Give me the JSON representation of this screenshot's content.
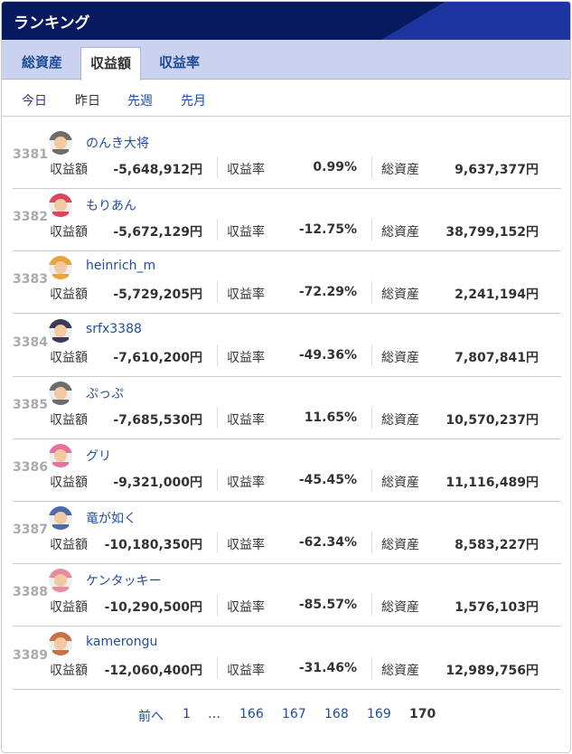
{
  "header": {
    "title": "ランキング"
  },
  "tabs": [
    {
      "label": "総資産"
    },
    {
      "label": "収益額",
      "active": true
    },
    {
      "label": "収益率"
    }
  ],
  "filters": [
    {
      "label": "今日"
    },
    {
      "label": "昨日",
      "active": true
    },
    {
      "label": "先週"
    },
    {
      "label": "先月"
    }
  ],
  "labels": {
    "profit": "収益額",
    "rate": "収益率",
    "assets": "総資産"
  },
  "rows": [
    {
      "rank": "3381",
      "name": "のんき大将",
      "profit": "-5,648,912円",
      "rate": "0.99%",
      "assets": "9,637,377円",
      "avatar_color": "#6d6d6d"
    },
    {
      "rank": "3382",
      "name": "もりあん",
      "profit": "-5,672,129円",
      "rate": "-12.75%",
      "assets": "38,799,152円",
      "avatar_color": "#d9485a"
    },
    {
      "rank": "3383",
      "name": "heinrich_m",
      "profit": "-5,729,205円",
      "rate": "-72.29%",
      "assets": "2,241,194円",
      "avatar_color": "#e8a43a"
    },
    {
      "rank": "3384",
      "name": "srfx3388",
      "profit": "-7,610,200円",
      "rate": "-49.36%",
      "assets": "7,807,841円",
      "avatar_color": "#3a3a5a"
    },
    {
      "rank": "3385",
      "name": "ぷっぷ",
      "profit": "-7,685,530円",
      "rate": "11.65%",
      "assets": "10,570,237円",
      "avatar_color": "#6d6d6d"
    },
    {
      "rank": "3386",
      "name": "グリ",
      "profit": "-9,321,000円",
      "rate": "-45.45%",
      "assets": "11,116,489円",
      "avatar_color": "#e86fa0"
    },
    {
      "rank": "3387",
      "name": "竜が如く",
      "profit": "-10,180,350円",
      "rate": "-62.34%",
      "assets": "8,583,227円",
      "avatar_color": "#4a6aa8"
    },
    {
      "rank": "3388",
      "name": "ケンタッキー",
      "profit": "-10,290,500円",
      "rate": "-85.57%",
      "assets": "1,576,103円",
      "avatar_color": "#e88aa0"
    },
    {
      "rank": "3389",
      "name": "kamerongu",
      "profit": "-12,060,400円",
      "rate": "-31.46%",
      "assets": "12,989,756円",
      "avatar_color": "#c8704a"
    }
  ],
  "pagination": {
    "prev": "前へ",
    "pages": [
      "1",
      "…",
      "166",
      "167",
      "168",
      "169",
      "170"
    ],
    "current": "170"
  }
}
